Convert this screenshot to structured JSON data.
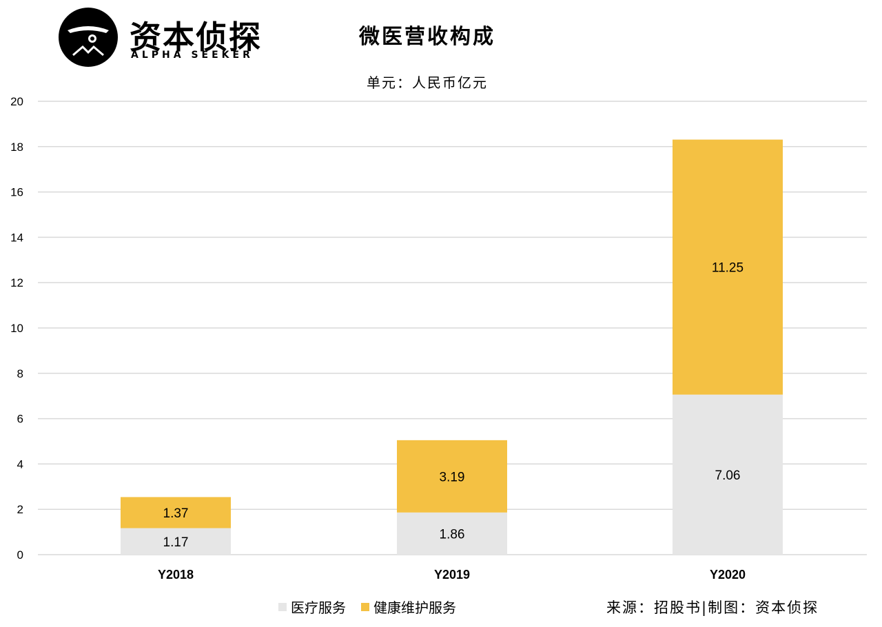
{
  "logo": {
    "cn": "资本侦探",
    "en": "ALPHA SEEKER"
  },
  "colors": {
    "medical_service": "#e6e6e6",
    "health_service": "#f4c143",
    "grid": "#d9d9d9"
  },
  "chart_data": {
    "type": "bar",
    "stacked": true,
    "title": "微医营收构成",
    "subtitle": "单元：人民币亿元",
    "categories": [
      "Y2018",
      "Y2019",
      "Y2020"
    ],
    "series": [
      {
        "name": "医疗服务",
        "values": [
          1.17,
          1.86,
          7.06
        ],
        "labels": [
          "1.17",
          "1.86",
          "7.06"
        ]
      },
      {
        "name": "健康维护服务",
        "values": [
          1.37,
          3.19,
          11.25
        ],
        "labels": [
          "1.37",
          "3.19",
          "11.25"
        ]
      }
    ],
    "ylim": [
      0,
      20
    ],
    "yticks": [
      "0",
      "2",
      "4",
      "6",
      "8",
      "10",
      "12",
      "14",
      "16",
      "18",
      "20"
    ],
    "grid": true,
    "legend_position": "bottom"
  },
  "source": "来源：招股书|制图：资本侦探"
}
